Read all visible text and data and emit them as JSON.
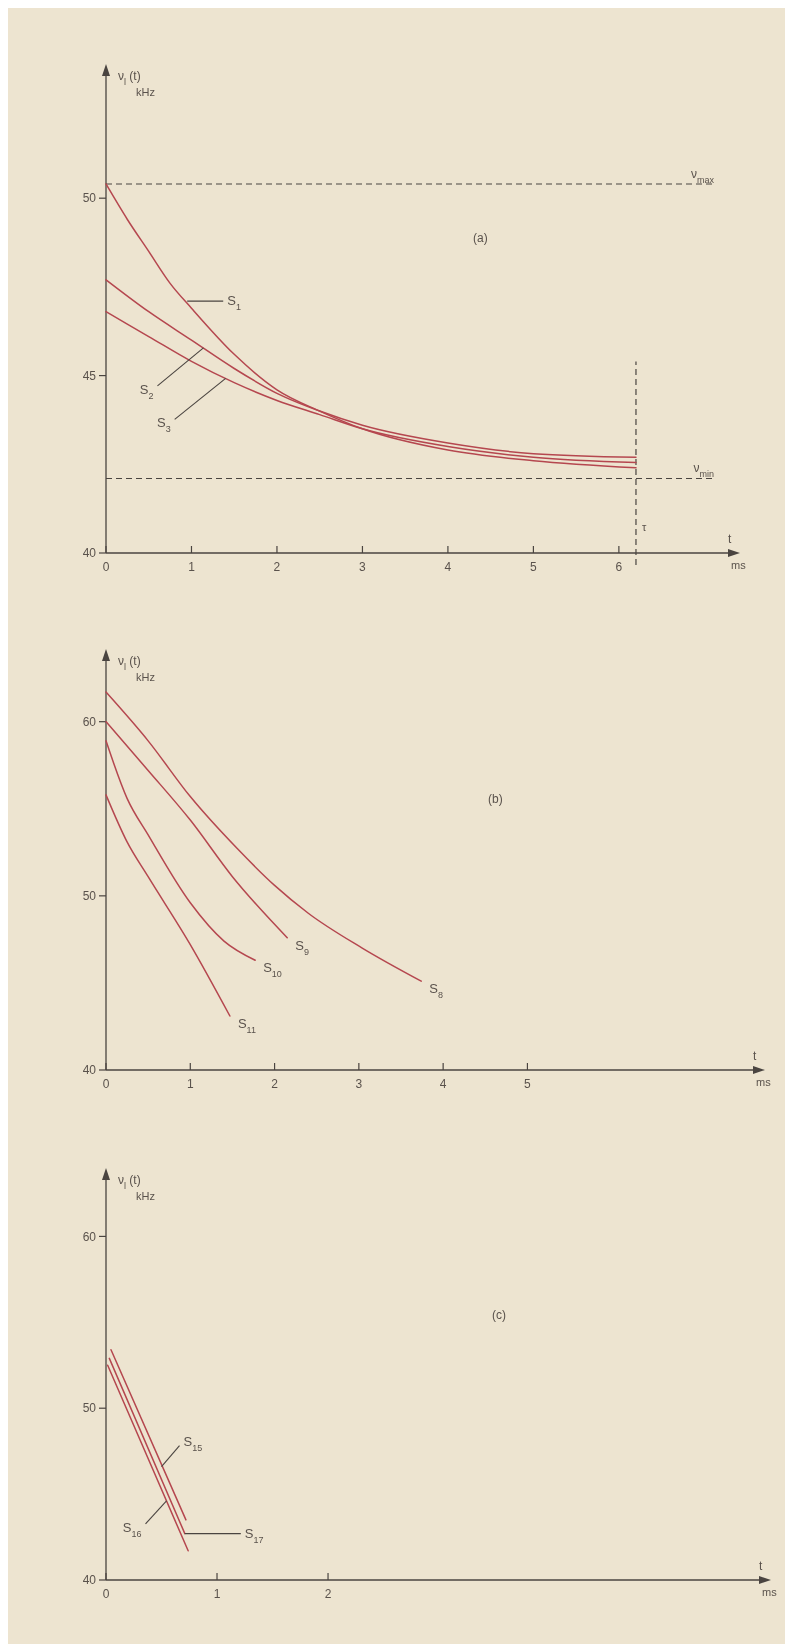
{
  "chart_data": [
    {
      "type": "line",
      "title": "(a)",
      "xlabel": "t ms",
      "ylabel": "ν$_{l}$ (t) kHz",
      "xlim": [
        0,
        7.3
      ],
      "ylim": [
        40,
        53.5
      ],
      "xticks": [
        0,
        1,
        2,
        3,
        4,
        5,
        6
      ],
      "yticks": [
        40,
        45,
        50
      ],
      "series": [
        {
          "color": "#b5474f",
          "x": [
            0,
            0.25,
            0.5,
            0.75,
            1,
            1.5,
            2,
            2.5,
            3,
            4,
            5,
            6.2
          ],
          "values": [
            50.4,
            49.4,
            48.5,
            47.6,
            46.9,
            45.6,
            44.6,
            44.0,
            43.5,
            42.9,
            42.6,
            42.4
          ]
        },
        {
          "color": "#b5474f",
          "x": [
            0,
            0.5,
            1,
            1.5,
            2,
            2.5,
            3,
            4,
            5,
            6.2
          ],
          "values": [
            47.7,
            46.8,
            46.0,
            45.2,
            44.5,
            44.0,
            43.6,
            43.1,
            42.8,
            42.7
          ]
        },
        {
          "color": "#b5474f",
          "x": [
            0,
            0.5,
            1,
            1.5,
            2,
            2.5,
            3,
            4,
            5,
            6.2
          ],
          "values": [
            46.8,
            46.1,
            45.4,
            44.8,
            44.3,
            43.9,
            43.5,
            43.0,
            42.7,
            42.55
          ]
        }
      ],
      "ref_lines": [
        {
          "axis": "y",
          "value": 50.4,
          "label": "ν$_{max}$",
          "line_style": "dashed",
          "color": "#4a4440"
        },
        {
          "axis": "y",
          "value": 42.1,
          "label": "ν$_{min}$",
          "line_style": "dashed",
          "color": "#4a4440"
        },
        {
          "axis": "x",
          "value": 6.2,
          "label": "τ",
          "line_style": "dashed",
          "color": "#4a4440"
        }
      ],
      "annotations": [
        {
          "text": "S$_{1}$",
          "x": 0.95,
          "y": 47.1
        },
        {
          "text": "S$_{2}$",
          "x": 1.14,
          "y": 45.78
        },
        {
          "text": "S$_{3}$",
          "x": 1.4,
          "y": 44.92
        }
      ]
    },
    {
      "type": "line",
      "title": "(b)",
      "xlabel": "t ms",
      "ylabel": "ν$_{l}$ (t) kHz",
      "xlim": [
        0,
        7.7
      ],
      "ylim": [
        40,
        63.6
      ],
      "xticks": [
        0,
        1,
        2,
        3,
        4,
        5
      ],
      "yticks": [
        40,
        50,
        60
      ],
      "series": [
        {
          "color": "#b5474f",
          "x": [
            0,
            0.5,
            1,
            1.56,
            2,
            2.4,
            3.04,
            3.74
          ],
          "values": [
            61.7,
            58.9,
            55.7,
            52.7,
            50.6,
            49.0,
            47.0,
            45.1
          ]
        },
        {
          "color": "#b5474f",
          "x": [
            0,
            0.5,
            1,
            1.5,
            2.15
          ],
          "values": [
            60.0,
            57.2,
            54.35,
            51.1,
            47.6
          ]
        },
        {
          "color": "#b5474f",
          "x": [
            0,
            0.25,
            0.5,
            1,
            1.4,
            1.77
          ],
          "values": [
            58.9,
            55.6,
            53.5,
            49.6,
            47.4,
            46.3
          ]
        },
        {
          "color": "#b5474f",
          "x": [
            0,
            0.25,
            0.5,
            1,
            1.47
          ],
          "values": [
            55.8,
            53.1,
            51.1,
            47.2,
            43.1
          ]
        }
      ],
      "annotations": [
        {
          "text": "S$_{8}$",
          "x": 3.74,
          "y": 45.1
        },
        {
          "text": "S$_{9}$",
          "x": 2.15,
          "y": 47.6
        },
        {
          "text": "S$_{10}$",
          "x": 1.77,
          "y": 46.3
        },
        {
          "text": "S$_{11}$",
          "x": 1.47,
          "y": 43.1
        }
      ]
    },
    {
      "type": "line",
      "title": "(c)",
      "xlabel": "t ms",
      "ylabel": "ν$_{l}$ (t) kHz",
      "xlim": [
        0,
        5.9
      ],
      "ylim": [
        40,
        63.4
      ],
      "xticks": [
        0,
        1,
        2
      ],
      "yticks": [
        40,
        50,
        60
      ],
      "series": [
        {
          "color": "#b5474f",
          "x": [
            0.045,
            0.72
          ],
          "values": [
            53.4,
            43.5
          ]
        },
        {
          "color": "#b5474f",
          "x": [
            0.03,
            0.71
          ],
          "values": [
            52.9,
            42.7
          ]
        },
        {
          "color": "#b5474f",
          "x": [
            0.015,
            0.74
          ],
          "values": [
            52.5,
            41.7
          ]
        }
      ],
      "annotations": [
        {
          "text": "S$_{15}$",
          "x": 0.5,
          "y": 46.6
        },
        {
          "text": "S$_{16}$",
          "x": 0.545,
          "y": 44.6
        },
        {
          "text": "S$_{17}$",
          "x": 0.71,
          "y": 42.7
        }
      ]
    }
  ]
}
